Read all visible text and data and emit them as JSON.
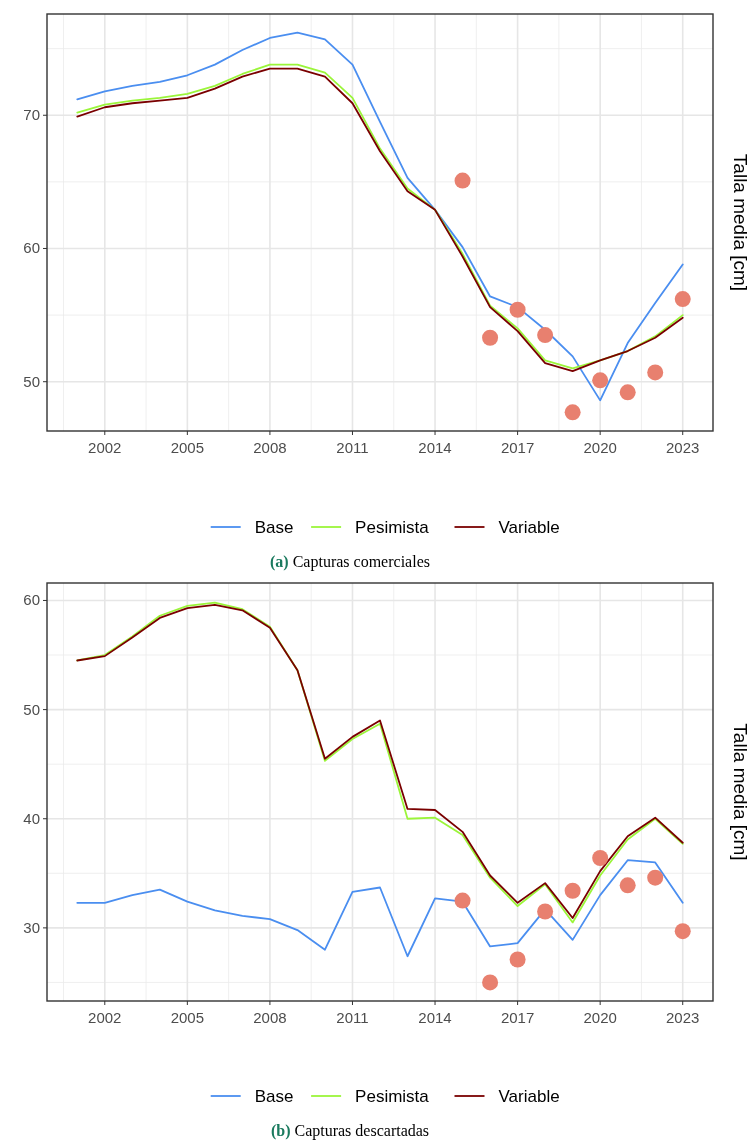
{
  "chart_data": [
    {
      "type": "line",
      "ylabel": "Talla media [cm]",
      "annotations": [
        "(a) Capturas comerciales"
      ],
      "x": [
        2001,
        2002,
        2003,
        2004,
        2005,
        2006,
        2007,
        2008,
        2009,
        2010,
        2011,
        2012,
        2013,
        2014,
        2015,
        2016,
        2017,
        2018,
        2019,
        2020,
        2021,
        2022,
        2023
      ],
      "xlim": [
        1999.9,
        2024.1
      ],
      "xticks": [
        2002,
        2005,
        2008,
        2011,
        2014,
        2017,
        2020,
        2023
      ],
      "ylim": [
        46.3,
        77.6
      ],
      "yticks": [
        50,
        60,
        70
      ],
      "grid": true,
      "legend": "bottom",
      "line_style": "solid",
      "series": [
        {
          "name": "Base",
          "color": "#4a8ef0",
          "values": [
            71.2,
            71.8,
            72.2,
            72.5,
            73.0,
            73.8,
            74.9,
            75.8,
            76.2,
            75.7,
            73.8,
            69.5,
            65.3,
            62.9,
            60.1,
            56.4,
            55.6,
            53.9,
            51.9,
            48.6,
            52.9,
            55.9,
            58.8
          ]
        },
        {
          "name": "Pesimista",
          "color": "#9bf53a",
          "values": [
            70.2,
            70.8,
            71.1,
            71.3,
            71.6,
            72.2,
            73.1,
            73.8,
            73.8,
            73.2,
            71.3,
            67.5,
            64.5,
            62.9,
            59.6,
            55.7,
            54.0,
            51.6,
            51.0,
            51.6,
            52.3,
            53.4,
            55.0
          ]
        },
        {
          "name": "Variable",
          "color": "#7a0000",
          "values": [
            69.9,
            70.6,
            70.9,
            71.1,
            71.3,
            72.0,
            72.9,
            73.5,
            73.5,
            72.9,
            70.9,
            67.3,
            64.3,
            62.9,
            59.4,
            55.6,
            53.8,
            51.4,
            50.8,
            51.6,
            52.3,
            53.3,
            54.8
          ]
        },
        {
          "type": "scatter",
          "marker": "circle",
          "color": "#e8806f",
          "x": [
            2015,
            2016,
            2017,
            2018,
            2019,
            2020,
            2021,
            2022,
            2023
          ],
          "values": [
            65.1,
            53.3,
            55.4,
            53.5,
            47.7,
            50.1,
            49.2,
            50.7,
            56.2
          ]
        }
      ]
    },
    {
      "type": "line",
      "ylabel": "Talla media [cm]",
      "annotations": [
        "(b) Capturas descartadas"
      ],
      "x": [
        2001,
        2002,
        2003,
        2004,
        2005,
        2006,
        2007,
        2008,
        2009,
        2010,
        2011,
        2012,
        2013,
        2014,
        2015,
        2016,
        2017,
        2018,
        2019,
        2020,
        2021,
        2022,
        2023
      ],
      "xlim": [
        1999.9,
        2024.1
      ],
      "xticks": [
        2002,
        2005,
        2008,
        2011,
        2014,
        2017,
        2020,
        2023
      ],
      "ylim": [
        23.3,
        61.6
      ],
      "yticks": [
        30,
        40,
        50,
        60
      ],
      "grid": true,
      "legend": "bottom",
      "line_style": "solid",
      "series": [
        {
          "name": "Base",
          "color": "#4a8ef0",
          "values": [
            32.3,
            32.3,
            33.0,
            33.5,
            32.4,
            31.6,
            31.1,
            30.8,
            29.8,
            28.0,
            33.3,
            33.7,
            27.4,
            32.7,
            32.4,
            28.3,
            28.6,
            31.7,
            28.9,
            33.0,
            36.2,
            36.0,
            32.3
          ]
        },
        {
          "name": "Pesimista",
          "color": "#9bf53a",
          "values": [
            54.5,
            55.0,
            56.7,
            58.6,
            59.5,
            59.8,
            59.2,
            57.6,
            53.6,
            45.3,
            47.3,
            48.7,
            40.0,
            40.1,
            38.5,
            34.6,
            32.0,
            34.0,
            30.5,
            34.8,
            38.1,
            40.0,
            37.7
          ]
        },
        {
          "name": "Variable",
          "color": "#7a0000",
          "values": [
            54.5,
            54.9,
            56.6,
            58.4,
            59.3,
            59.6,
            59.1,
            57.5,
            53.6,
            45.5,
            47.5,
            49.0,
            40.9,
            40.8,
            38.8,
            34.8,
            32.3,
            34.1,
            30.9,
            35.2,
            38.4,
            40.1,
            37.8
          ]
        },
        {
          "type": "scatter",
          "marker": "circle",
          "color": "#e8806f",
          "x": [
            2015,
            2016,
            2017,
            2018,
            2019,
            2020,
            2021,
            2022,
            2023
          ],
          "values": [
            32.5,
            25.0,
            27.1,
            31.5,
            33.4,
            36.4,
            33.9,
            34.6,
            29.7
          ]
        }
      ]
    }
  ]
}
